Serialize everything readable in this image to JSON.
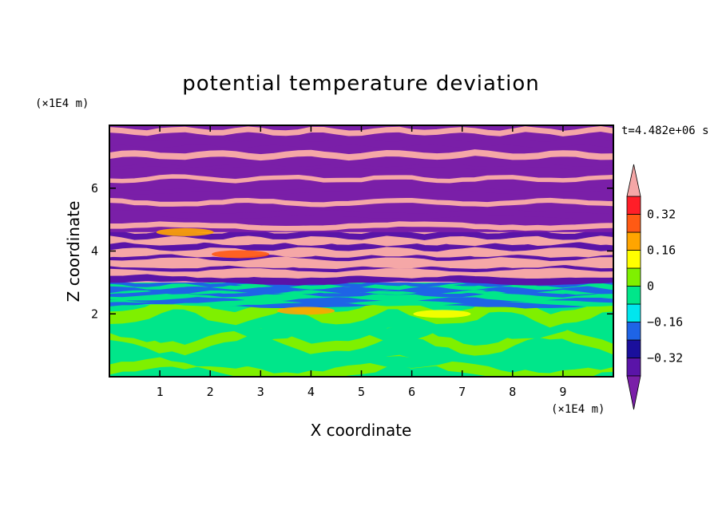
{
  "chart_data": {
    "type": "heatmap",
    "title": "potential temperature deviation",
    "xlabel": "X coordinate",
    "ylabel": "Z coordinate",
    "x_units": "(×1E4 m)",
    "y_units": "(×1E4 m)",
    "time_label": "t=4.482e+06 s",
    "xlim": [
      0,
      10
    ],
    "ylim": [
      0,
      8
    ],
    "x_ticks": [
      1,
      2,
      3,
      4,
      5,
      6,
      7,
      8,
      9
    ],
    "y_ticks": [
      2,
      4,
      6
    ],
    "colorbar": {
      "labels": [
        "0.32",
        "0.16",
        "0",
        "−0.16",
        "−0.32"
      ],
      "label_values": [
        0.32,
        0.16,
        0,
        -0.16,
        -0.32
      ],
      "levels": [
        -0.4,
        -0.32,
        -0.24,
        -0.16,
        -0.08,
        0,
        0.08,
        0.16,
        0.24,
        0.32,
        0.4
      ],
      "colors": [
        "#7a1fa8",
        "#5a14a8",
        "#1a0f9c",
        "#1e64e6",
        "#00e6ee",
        "#00e68a",
        "#7ff000",
        "#ffff00",
        "#ffa500",
        "#ff5a14",
        "#ff1e28",
        "#f5a7a7"
      ],
      "extend": "both"
    },
    "bands": [
      {
        "z": [
          0.0,
          2.3
        ],
        "fill": "#00e68a",
        "accent": "#7ff000"
      },
      {
        "z": [
          2.3,
          3.0
        ],
        "fill": "#00e68a",
        "accent": "#1e64e6"
      },
      {
        "z": [
          3.0,
          4.6
        ],
        "fill": "#f5a7a7",
        "accent": "#5a14a8"
      },
      {
        "z": [
          4.6,
          8.0
        ],
        "fill": "#7a1fa8",
        "accent": "#f5a7a7"
      }
    ]
  }
}
